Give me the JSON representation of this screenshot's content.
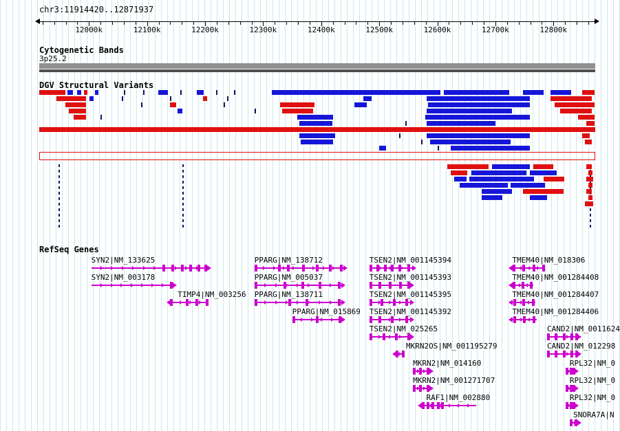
{
  "meta": {
    "locus": "chr3:11914420..12871937"
  },
  "axis": {
    "start": 11914420,
    "end": 12871937,
    "minor_step": 20000,
    "major_ticks": [
      {
        "value": 12000000,
        "label": "12000k"
      },
      {
        "value": 12100000,
        "label": "12100k"
      },
      {
        "value": 12200000,
        "label": "12200k"
      },
      {
        "value": 12300000,
        "label": "12300k"
      },
      {
        "value": 12400000,
        "label": "12400k"
      },
      {
        "value": 12500000,
        "label": "12500k"
      },
      {
        "value": 12600000,
        "label": "12600k"
      },
      {
        "value": 12700000,
        "label": "12700k"
      },
      {
        "value": 12800000,
        "label": "12800k"
      }
    ]
  },
  "colors": {
    "loss_red": "#e01010",
    "gain_blue": "#1616d8",
    "point_navy": "#14145a",
    "gene_magenta": "#cc00cc",
    "cytoband_gray": "#909090",
    "grid_cyan": "#c7e9ed"
  },
  "tracks": {
    "cytobands": {
      "title": "Cytogenetic Bands",
      "bands": [
        {
          "name": "3p25.2",
          "start": 11914420,
          "end": 12871937
        }
      ]
    },
    "variants": {
      "title": "DGV Structural Variants",
      "item_format": [
        "start_bp",
        "end_bp",
        "row",
        "type"
      ],
      "types": {
        "l": "loss (red)",
        "g": "gain (blue)",
        "t": "point tick",
        "o": "full-span outline",
        "d": "dashed vertical extent"
      },
      "items": [
        [
          11914420,
          11959000,
          0,
          "l"
        ],
        [
          11963000,
          11973000,
          0,
          "g"
        ],
        [
          11979000,
          11987000,
          0,
          "g"
        ],
        [
          11991000,
          11998000,
          0,
          "l"
        ],
        [
          12010000,
          12016000,
          0,
          "g"
        ],
        [
          12060000,
          12060000,
          0,
          "t"
        ],
        [
          12093000,
          12093000,
          0,
          "t"
        ],
        [
          12119000,
          12136000,
          0,
          "g"
        ],
        [
          12157000,
          12157000,
          0,
          "t"
        ],
        [
          12186000,
          12198000,
          0,
          "g"
        ],
        [
          12219000,
          12219000,
          0,
          "t"
        ],
        [
          12250000,
          12250000,
          0,
          "t"
        ],
        [
          12315000,
          12605000,
          0,
          "g"
        ],
        [
          12611000,
          12724000,
          0,
          "g"
        ],
        [
          12747000,
          12783000,
          0,
          "g"
        ],
        [
          12795000,
          12830000,
          0,
          "g"
        ],
        [
          12849000,
          12871000,
          0,
          "l"
        ],
        [
          11944000,
          11995000,
          1,
          "l"
        ],
        [
          12001000,
          12008000,
          1,
          "g"
        ],
        [
          12057000,
          12057000,
          1,
          "t"
        ],
        [
          12140000,
          12140000,
          1,
          "t"
        ],
        [
          12196000,
          12204000,
          1,
          "l"
        ],
        [
          12238000,
          12238000,
          1,
          "t"
        ],
        [
          12472000,
          12487000,
          1,
          "g"
        ],
        [
          12581000,
          12759000,
          1,
          "g"
        ],
        [
          12795000,
          12866000,
          1,
          "l"
        ],
        [
          11959000,
          11995000,
          2,
          "l"
        ],
        [
          12090000,
          12090000,
          2,
          "t"
        ],
        [
          12140000,
          12150000,
          2,
          "l"
        ],
        [
          12232000,
          12232000,
          2,
          "t"
        ],
        [
          12329000,
          12388000,
          2,
          "l"
        ],
        [
          12457000,
          12478000,
          2,
          "g"
        ],
        [
          12584000,
          12759000,
          2,
          "g"
        ],
        [
          12802000,
          12871000,
          2,
          "l"
        ],
        [
          11965000,
          11995000,
          3,
          "l"
        ],
        [
          12153000,
          12161000,
          3,
          "g"
        ],
        [
          12285000,
          12285000,
          3,
          "t"
        ],
        [
          12333000,
          12386000,
          3,
          "l"
        ],
        [
          12581000,
          12729000,
          3,
          "g"
        ],
        [
          12812000,
          12866000,
          3,
          "l"
        ],
        [
          11974000,
          11995000,
          4,
          "l"
        ],
        [
          12020000,
          12020000,
          4,
          "t"
        ],
        [
          12359000,
          12421000,
          4,
          "g"
        ],
        [
          12579000,
          12759000,
          4,
          "g"
        ],
        [
          12842000,
          12871000,
          4,
          "l"
        ],
        [
          12362000,
          12419000,
          5,
          "g"
        ],
        [
          12545000,
          12545000,
          5,
          "t"
        ],
        [
          12581000,
          12700000,
          5,
          "g"
        ],
        [
          12856000,
          12871000,
          5,
          "l"
        ],
        [
          11914420,
          12871937,
          6,
          "l"
        ],
        [
          12362000,
          12424000,
          7,
          "g"
        ],
        [
          12534000,
          12534000,
          7,
          "t"
        ],
        [
          12581000,
          12759000,
          7,
          "g"
        ],
        [
          12849000,
          12862000,
          7,
          "l"
        ],
        [
          12365000,
          12421000,
          8,
          "g"
        ],
        [
          12572000,
          12572000,
          8,
          "t"
        ],
        [
          12588000,
          12726000,
          8,
          "g"
        ],
        [
          12854000,
          12866000,
          8,
          "l"
        ],
        [
          12500000,
          12512000,
          9,
          "g"
        ],
        [
          12601000,
          12601000,
          9,
          "t"
        ],
        [
          12623000,
          12759000,
          9,
          "g"
        ],
        [
          11914420,
          12871937,
          10,
          "o"
        ],
        [
          11948000,
          11948000,
          12,
          "d"
        ],
        [
          12161000,
          12161000,
          12,
          "d"
        ],
        [
          12862000,
          12862000,
          12,
          "d"
        ],
        [
          12617000,
          12688000,
          12,
          "l"
        ],
        [
          12694000,
          12760000,
          12,
          "g"
        ],
        [
          12765000,
          12800000,
          12,
          "l"
        ],
        [
          12856000,
          12866000,
          12,
          "l"
        ],
        [
          12623000,
          12652000,
          13,
          "l"
        ],
        [
          12658000,
          12753000,
          13,
          "g"
        ],
        [
          12759000,
          12806000,
          13,
          "g"
        ],
        [
          12860000,
          12867000,
          13,
          "l"
        ],
        [
          12629000,
          12650000,
          14,
          "g"
        ],
        [
          12655000,
          12767000,
          14,
          "g"
        ],
        [
          12783000,
          12819000,
          14,
          "l"
        ],
        [
          12856000,
          12868000,
          14,
          "l"
        ],
        [
          12638000,
          12721000,
          15,
          "g"
        ],
        [
          12726000,
          12786000,
          15,
          "g"
        ],
        [
          12860000,
          12867000,
          15,
          "l"
        ],
        [
          12676000,
          12729000,
          16,
          "g"
        ],
        [
          12747000,
          12818000,
          16,
          "l"
        ],
        [
          12856000,
          12866000,
          16,
          "l"
        ],
        [
          12676000,
          12712000,
          17,
          "g"
        ],
        [
          12759000,
          12789000,
          17,
          "g"
        ],
        [
          12860000,
          12867000,
          17,
          "l"
        ],
        [
          12854000,
          12868000,
          18,
          "l"
        ]
      ]
    },
    "genes": {
      "title": "RefSeq Genes",
      "items": [
        {
          "label": "SYN2|NM_133625",
          "start": 12004000,
          "end": 12205000,
          "strand": "+",
          "row": 0,
          "exons": [
            0.62,
            0.7,
            0.78,
            0.85,
            0.92,
            0.98
          ]
        },
        {
          "label": "SYN2|NM_003178",
          "start": 12004000,
          "end": 12146000,
          "strand": "+",
          "row": 1,
          "exons": [
            0.97
          ]
        },
        {
          "label": "TIMP4|NM_003256",
          "start": 12140000,
          "end": 12206000,
          "strand": "-",
          "row": 2,
          "label_start": 12153000,
          "exons": [
            0.03,
            0.45,
            0.7,
            0.96
          ]
        },
        {
          "label": "PPARG|NM_138712",
          "start": 12285000,
          "end": 12439000,
          "strand": "+",
          "row": 0,
          "exons": [
            0.02,
            0.28,
            0.38,
            0.55,
            0.7,
            0.85,
            0.97
          ]
        },
        {
          "label": "PPARG|NM_005037",
          "start": 12285000,
          "end": 12436000,
          "strand": "+",
          "row": 1,
          "exons": [
            0.02,
            0.35,
            0.55,
            0.75,
            0.97
          ]
        },
        {
          "label": "PPARG|NM_138711",
          "start": 12285000,
          "end": 12436000,
          "strand": "+",
          "row": 2,
          "exons": [
            0.02,
            0.4,
            0.6,
            0.97
          ]
        },
        {
          "label": "PPARG|NM_015869",
          "start": 12350000,
          "end": 12436000,
          "strand": "+",
          "row": 3,
          "exons": [
            0.04,
            0.5,
            0.96
          ]
        },
        {
          "label": "TSEN2|NM_001145394",
          "start": 12483000,
          "end": 12558000,
          "strand": "+",
          "row": 0,
          "exons": [
            0.04,
            0.2,
            0.36,
            0.52,
            0.7,
            0.9
          ]
        },
        {
          "label": "TSEN2|NM_001145393",
          "start": 12483000,
          "end": 12554000,
          "strand": "+",
          "row": 1,
          "exons": [
            0.04,
            0.25,
            0.5,
            0.75,
            0.95
          ]
        },
        {
          "label": "TSEN2|NM_001145395",
          "start": 12483000,
          "end": 12554000,
          "strand": "+",
          "row": 2,
          "exons": [
            0.04,
            0.3,
            0.6,
            0.9
          ]
        },
        {
          "label": "TSEN2|NM_001145392",
          "start": 12483000,
          "end": 12554000,
          "strand": "+",
          "row": 3,
          "exons": [
            0.04,
            0.25,
            0.55,
            0.9
          ]
        },
        {
          "label": "TSEN2|NM_025265",
          "start": 12483000,
          "end": 12554000,
          "strand": "+",
          "row": 4,
          "exons": [
            0.04,
            0.35,
            0.65,
            0.95
          ]
        },
        {
          "label": "MKRN2OS|NM_001195279",
          "start": 12528000,
          "end": 12544000,
          "strand": "-",
          "row": 5,
          "label_start": 12546000,
          "exons": [
            0.15,
            0.85
          ]
        },
        {
          "label": "MKRN2|NM_014160",
          "start": 12558000,
          "end": 12588000,
          "strand": "+",
          "row": 6,
          "exons": [
            0.08,
            0.45,
            0.85
          ]
        },
        {
          "label": "MKRN2|NM_001271707",
          "start": 12558000,
          "end": 12588000,
          "strand": "+",
          "row": 7,
          "exons": [
            0.08,
            0.45,
            0.85
          ]
        },
        {
          "label": "RAF1|NM_002880",
          "start": 12572000,
          "end": 12667000,
          "strand": "-",
          "row": 8,
          "label_start": 12581000,
          "exons": [
            0.04,
            0.13,
            0.22,
            0.31,
            0.39
          ]
        },
        {
          "label": "TMEM40|NM_018306",
          "start": 12729000,
          "end": 12786000,
          "strand": "-",
          "row": 0,
          "exons": [
            0.05,
            0.35,
            0.65,
            0.95
          ]
        },
        {
          "label": "TMEM40|NM_001284408",
          "start": 12729000,
          "end": 12765000,
          "strand": "-",
          "row": 1,
          "exons": [
            0.1,
            0.5,
            0.9
          ]
        },
        {
          "label": "TMEM40|NM_001284407",
          "start": 12729000,
          "end": 12769000,
          "strand": "-",
          "row": 2,
          "exons": [
            0.1,
            0.5,
            0.9
          ]
        },
        {
          "label": "TMEM40|NM_001284406",
          "start": 12729000,
          "end": 12771000,
          "strand": "-",
          "row": 3,
          "exons": [
            0.1,
            0.5,
            0.9
          ]
        },
        {
          "label": "CAND2|NM_0011624",
          "start": 12789000,
          "end": 12842000,
          "strand": "+",
          "row": 4,
          "exons": [
            0.05,
            0.3,
            0.55,
            0.8,
            0.97
          ]
        },
        {
          "label": "CAND2|NM_012298",
          "start": 12789000,
          "end": 12842000,
          "strand": "+",
          "row": 5,
          "exons": [
            0.05,
            0.3,
            0.55,
            0.8,
            0.97
          ]
        },
        {
          "label": "RPL32|NM_0",
          "start": 12821000,
          "end": 12838000,
          "strand": "+",
          "row": 6,
          "label_start": 12828000,
          "exons": [
            0.1,
            0.55,
            0.92
          ]
        },
        {
          "label": "RPL32|NM_0",
          "start": 12821000,
          "end": 12838000,
          "strand": "+",
          "row": 7,
          "label_start": 12828000,
          "exons": [
            0.1,
            0.55,
            0.92
          ]
        },
        {
          "label": "RPL32|NM_0",
          "start": 12821000,
          "end": 12838000,
          "strand": "+",
          "row": 8,
          "label_start": 12828000,
          "exons": [
            0.1,
            0.55,
            0.92
          ]
        },
        {
          "label": "SNORA7A|N",
          "start": 12828000,
          "end": 12842000,
          "strand": "+",
          "row": 9,
          "label_start": 12834000,
          "exons": [
            0.2,
            0.8
          ]
        }
      ]
    }
  }
}
